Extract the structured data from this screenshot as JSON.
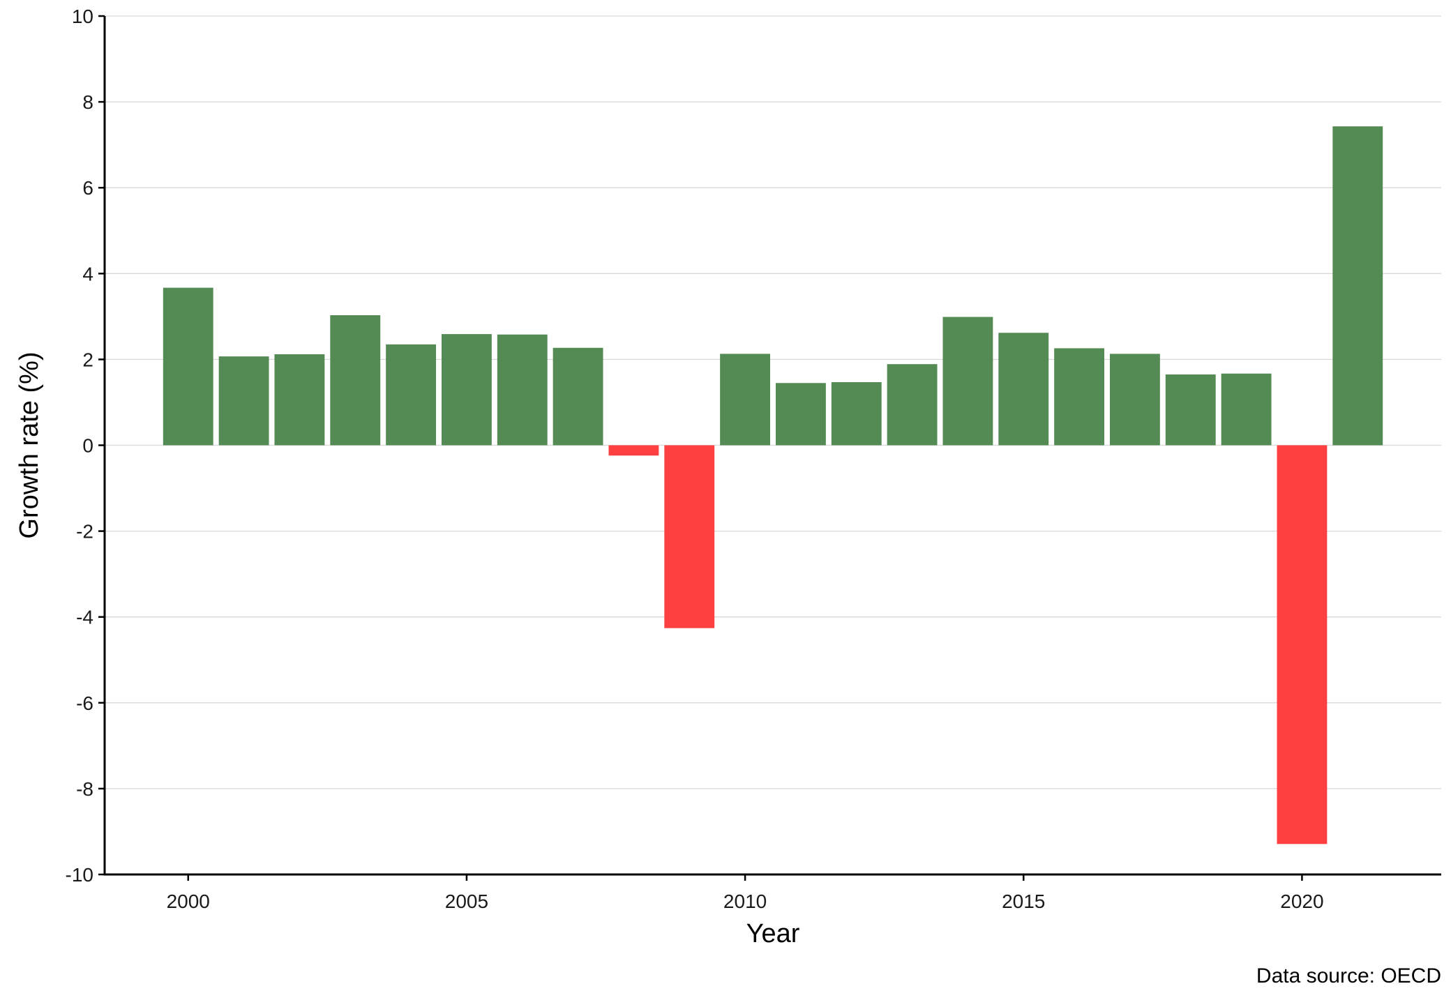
{
  "chart_data": {
    "type": "bar",
    "title": "",
    "xlabel": "Year",
    "ylabel": "Growth rate (%)",
    "caption": "Data source: OECD",
    "x": [
      2000,
      2001,
      2002,
      2003,
      2004,
      2005,
      2006,
      2007,
      2008,
      2009,
      2010,
      2011,
      2012,
      2013,
      2014,
      2015,
      2016,
      2017,
      2018,
      2019,
      2020,
      2021
    ],
    "values": [
      3.67,
      2.07,
      2.12,
      3.03,
      2.35,
      2.59,
      2.58,
      2.27,
      -0.24,
      -4.26,
      2.13,
      1.45,
      1.47,
      1.89,
      2.99,
      2.62,
      2.26,
      2.13,
      1.65,
      1.67,
      -9.29,
      7.43
    ],
    "ylim": [
      -10,
      10
    ],
    "xlim": [
      1998.5,
      2022.5
    ],
    "yticks": [
      -10,
      -8,
      -6,
      -4,
      -2,
      0,
      2,
      4,
      6,
      8,
      10
    ],
    "xticks": [
      2000,
      2005,
      2010,
      2015,
      2020
    ],
    "grid": true,
    "legend": "none",
    "colors": {
      "positive": "#548b54",
      "negative": "#ff4040",
      "grid": "#d9d9d9",
      "axis": "#000000"
    }
  }
}
